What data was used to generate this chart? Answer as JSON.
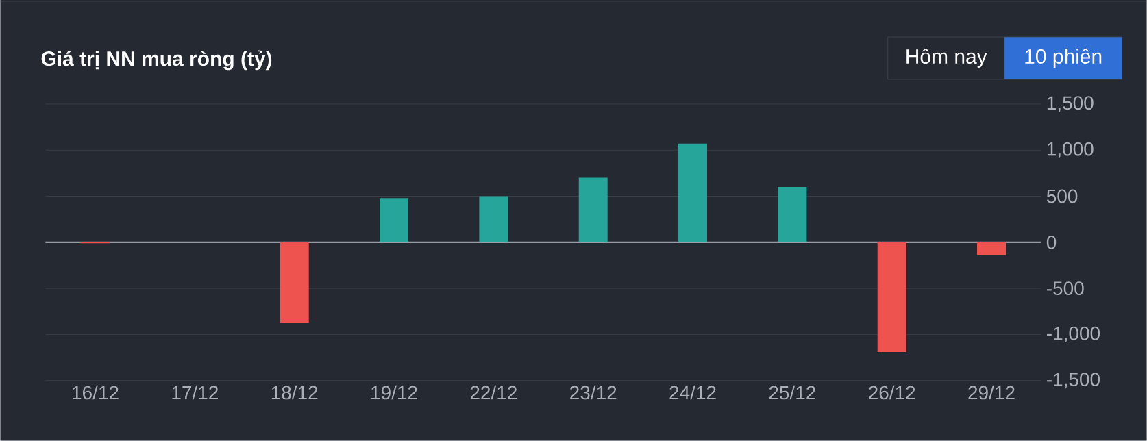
{
  "chart_data": {
    "type": "bar",
    "title": "Giá trị NN mua ròng (tỷ)",
    "categories": [
      "16/12",
      "17/12",
      "18/12",
      "19/12",
      "22/12",
      "23/12",
      "24/12",
      "25/12",
      "26/12",
      "29/12"
    ],
    "values": [
      -10,
      0,
      -870,
      480,
      500,
      700,
      1070,
      600,
      -1190,
      -140
    ],
    "colors": [
      "#ef5350",
      "#26a69a",
      "#ef5350",
      "#26a69a",
      "#26a69a",
      "#26a69a",
      "#26a69a",
      "#26a69a",
      "#ef5350",
      "#ef5350"
    ],
    "ylim": [
      -1500,
      1500
    ],
    "yticks": [
      {
        "value": -1500,
        "label": "-1,500"
      },
      {
        "value": -1000,
        "label": "-1,000"
      },
      {
        "value": -500,
        "label": "-500"
      },
      0,
      500,
      {
        "value": 1000,
        "label": "1,000"
      },
      {
        "value": 1500,
        "label": "1,500"
      }
    ],
    "grid": "y",
    "annotations": [
      "Hôm nay",
      "10 phiên"
    ]
  }
}
